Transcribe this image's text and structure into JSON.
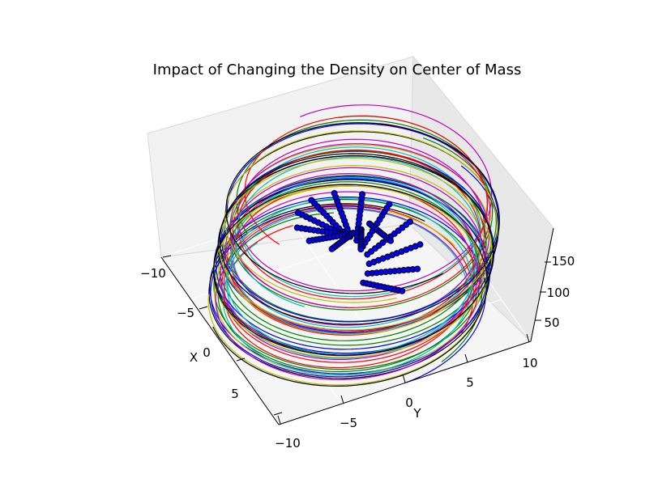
{
  "chart_data": {
    "type": "3d-line-scatter",
    "title": "Impact of Changing the Density on Center of Mass",
    "xlabel": "X",
    "ylabel": "Y",
    "zlabel": "",
    "xlim": [
      -10,
      10
    ],
    "ylim": [
      -10,
      10
    ],
    "zlim": [
      0,
      190
    ],
    "x_ticks": [
      "−10",
      "−5",
      "0",
      "5"
    ],
    "y_ticks": [
      "−10",
      "−5",
      "0",
      "5",
      "10"
    ],
    "z_ticks": [
      "50",
      "100",
      "150"
    ],
    "grid": true,
    "legend": "none",
    "series_colors": [
      "#0000ff",
      "#008000",
      "#ff0000",
      "#00bfbf",
      "#bf00bf",
      "#bfbf00",
      "#000000"
    ],
    "spiral": {
      "radius": 10,
      "z_start": 0,
      "z_end": 190,
      "turns": 3.3
    },
    "center_of_mass_tracks": {
      "marker_color": "#0000ff",
      "count": 14,
      "note_points_per_track": 12
    }
  }
}
